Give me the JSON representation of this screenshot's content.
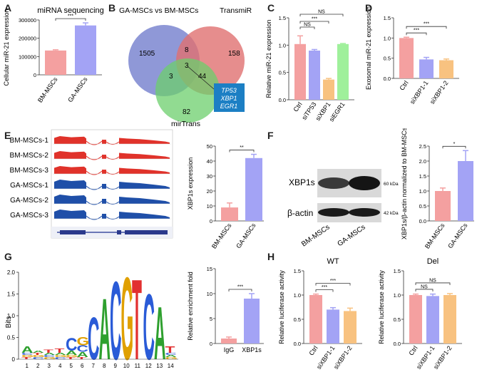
{
  "figure": {
    "panels": {
      "A": {
        "label": "A"
      },
      "B": {
        "label": "B"
      },
      "C": {
        "label": "C"
      },
      "D": {
        "label": "D"
      },
      "E": {
        "label": "E"
      },
      "F": {
        "label": "F"
      },
      "G": {
        "label": "G"
      },
      "H": {
        "label": "H"
      }
    },
    "venn": {
      "set1": "GA-MSCs vs BM-MSCs",
      "set2": "TransmiR",
      "set3": "mirTrans",
      "only1": "1505",
      "only2": "158",
      "only3": "82",
      "n12": "8",
      "n13": "3",
      "n23": "44",
      "n123": "3",
      "genes": [
        "TP53",
        "XBP1",
        "EGR1"
      ]
    },
    "tracks": {
      "labels": [
        "BM-MSCs-1",
        "BM-MSCs-2",
        "BM-MSCs-3",
        "GA-MSCs-1",
        "GA-MSCs-2",
        "GA-MSCs-3"
      ],
      "colors": [
        "#e0322a",
        "#e0322a",
        "#e0322a",
        "#1f4fa8",
        "#1f4fa8",
        "#1f4fa8"
      ]
    },
    "western": {
      "bands": [
        "XBP1s",
        "β-actin"
      ],
      "kda": [
        "60 kDa",
        "42 kDa"
      ],
      "lanes": [
        "BM-MSCs",
        "GA-MSCs"
      ]
    },
    "logo": {
      "ylabel": "Bits",
      "yticks": [
        "0",
        "0.5",
        "1.0",
        "1.5",
        "2.0"
      ],
      "positions": [
        "1",
        "2",
        "3",
        "4",
        "5",
        "6",
        "7",
        "8",
        "9",
        "10",
        "11",
        "12",
        "13",
        "14"
      ]
    }
  },
  "chart_data": [
    {
      "id": "A",
      "type": "bar",
      "title": "miRNA sequencing",
      "ylabel": "Cellular miR-21 expression",
      "categories": [
        "BM-MSCs",
        "GA-MSCs"
      ],
      "values": [
        133000,
        270000
      ],
      "errors": [
        4000,
        14000
      ],
      "colors": [
        "#f4a0a0",
        "#a3a3f5"
      ],
      "ylim": [
        0,
        300000
      ],
      "yticks": [
        "0",
        "100000",
        "200000",
        "300000"
      ],
      "sig": [
        "***"
      ]
    },
    {
      "id": "C",
      "type": "bar",
      "ylabel": "Relative miR-21 expression",
      "categories": [
        "Ctrl",
        "siTP53",
        "siXBP1",
        "siEGR1"
      ],
      "values": [
        1.02,
        0.9,
        0.37,
        1.02
      ],
      "errors": [
        0.15,
        0.02,
        0.02,
        0.01
      ],
      "colors": [
        "#f4a0a0",
        "#a3a3f5",
        "#f8c280",
        "#9ff09b"
      ],
      "ylim": [
        0,
        1.5
      ],
      "yticks": [
        "0.0",
        "0.5",
        "1.0",
        "1.5"
      ],
      "sig": [
        "NS",
        "***",
        "NS"
      ]
    },
    {
      "id": "D",
      "type": "bar",
      "ylabel": "Exosomal miR-21 expression",
      "categories": [
        "Ctrl",
        "siXBP1-1",
        "siXBP1-2"
      ],
      "values": [
        1.0,
        0.47,
        0.45
      ],
      "errors": [
        0.02,
        0.05,
        0.03
      ],
      "colors": [
        "#f4a0a0",
        "#a3a3f5",
        "#f8c280"
      ],
      "ylim": [
        0,
        1.5
      ],
      "yticks": [
        "0.0",
        "0.5",
        "1.0",
        "1.5"
      ],
      "sig": [
        "***",
        "***"
      ]
    },
    {
      "id": "E",
      "type": "bar",
      "ylabel": "XBP1s  expression",
      "categories": [
        "BM-MSCs",
        "GA-MSCs"
      ],
      "values": [
        9,
        42
      ],
      "errors": [
        3,
        2.5
      ],
      "colors": [
        "#f4a0a0",
        "#a3a3f5"
      ],
      "ylim": [
        0,
        50
      ],
      "yticks": [
        "0",
        "10",
        "20",
        "30",
        "40",
        "50"
      ],
      "sig": [
        "**"
      ]
    },
    {
      "id": "F",
      "type": "bar",
      "ylabel": "XBP1s/β-actin normalized to BM-MSCs",
      "categories": [
        "BM-MSCs",
        "GA-MSCs"
      ],
      "values": [
        1.0,
        2.0
      ],
      "errors": [
        0.1,
        0.35
      ],
      "colors": [
        "#f4a0a0",
        "#a3a3f5"
      ],
      "ylim": [
        0,
        2.5
      ],
      "yticks": [
        "0.0",
        "0.5",
        "1.0",
        "1.5",
        "2.0",
        "2.5"
      ],
      "sig": [
        "*"
      ]
    },
    {
      "id": "G",
      "type": "bar",
      "ylabel": "Relative enrichment fold",
      "categories": [
        "IgG",
        "XBP1s"
      ],
      "values": [
        1.0,
        9.0
      ],
      "errors": [
        0.3,
        1.0
      ],
      "colors": [
        "#f4a0a0",
        "#a3a3f5"
      ],
      "ylim": [
        0,
        15
      ],
      "yticks": [
        "0",
        "5",
        "10",
        "15"
      ],
      "sig": [
        "***"
      ]
    },
    {
      "id": "H1",
      "type": "bar",
      "title": "WT",
      "ylabel": "Relative luciferase activity",
      "categories": [
        "Ctrl",
        "siXBP1-1",
        "siXBP1-2"
      ],
      "values": [
        1.0,
        0.7,
        0.67
      ],
      "errors": [
        0.02,
        0.04,
        0.06
      ],
      "colors": [
        "#f4a0a0",
        "#a3a3f5",
        "#f8c280"
      ],
      "ylim": [
        0,
        1.5
      ],
      "yticks": [
        "0.0",
        "0.5",
        "1.0",
        "1.5"
      ],
      "sig": [
        "***",
        "***"
      ]
    },
    {
      "id": "H2",
      "type": "bar",
      "title": "Del",
      "ylabel": "Relative luciferase activity",
      "categories": [
        "Ctrl",
        "siXBP1-1",
        "siXBP1-2"
      ],
      "values": [
        1.0,
        0.98,
        1.0
      ],
      "errors": [
        0.02,
        0.04,
        0.03
      ],
      "colors": [
        "#f4a0a0",
        "#a3a3f5",
        "#f8c280"
      ],
      "ylim": [
        0,
        1.5
      ],
      "yticks": [
        "0.0",
        "0.5",
        "1.0",
        "1.5"
      ],
      "sig": [
        "NS",
        "NS"
      ]
    }
  ]
}
